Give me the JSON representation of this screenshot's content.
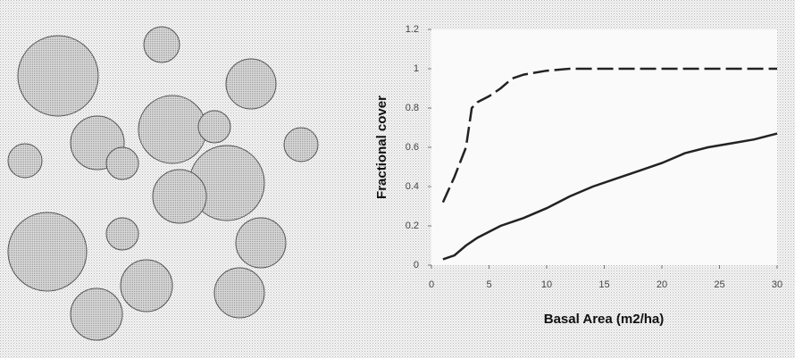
{
  "chart_data": {
    "type": "line",
    "xlabel": "Basal Area (m2/ha)",
    "ylabel": "Fractional cover",
    "xlim": [
      0,
      30
    ],
    "xticks": [
      0,
      5,
      10,
      15,
      20,
      25,
      30
    ],
    "ylim": [
      0,
      1.2
    ],
    "yticks": [
      0,
      0.2,
      0.4,
      0.6,
      0.8,
      1,
      1.2
    ],
    "series": [
      {
        "color": "#222222",
        "dash": true,
        "x": [
          1,
          2,
          3,
          3.5,
          4,
          5,
          6,
          7,
          8,
          10,
          12,
          15,
          20,
          25,
          30
        ],
        "values": [
          0.32,
          0.45,
          0.6,
          0.8,
          0.83,
          0.86,
          0.9,
          0.95,
          0.97,
          0.99,
          1,
          1,
          1,
          1,
          1
        ]
      },
      {
        "color": "#222222",
        "dash": false,
        "x": [
          1,
          2,
          3,
          4,
          5,
          6,
          8,
          10,
          12,
          14,
          16,
          18,
          20,
          22,
          24,
          26,
          28,
          30
        ],
        "values": [
          0.03,
          0.05,
          0.1,
          0.14,
          0.17,
          0.2,
          0.24,
          0.29,
          0.35,
          0.4,
          0.44,
          0.48,
          0.52,
          0.57,
          0.6,
          0.62,
          0.64,
          0.67
        ]
      }
    ]
  }
}
